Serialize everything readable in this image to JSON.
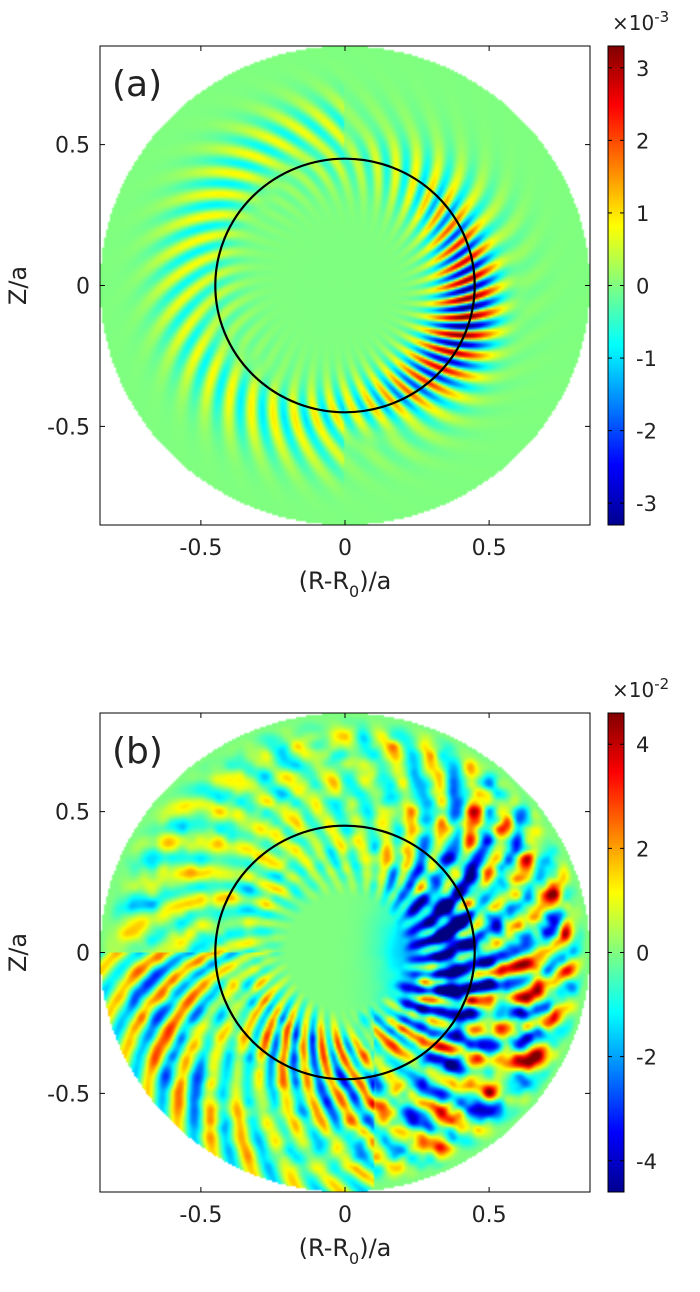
{
  "chart_data": [
    {
      "type": "heatmap",
      "panel_label": "(a)",
      "xlabel_main": "(R-R",
      "xlabel_sub": "0",
      "xlabel_tail": ")/a",
      "ylabel": "Z/a",
      "xlim": [
        -0.85,
        0.85
      ],
      "ylim": [
        -0.85,
        0.85
      ],
      "x_ticks": [
        -0.5,
        0,
        0.5
      ],
      "x_tick_labels": [
        "-0.5",
        "0",
        "0.5"
      ],
      "y_ticks": [
        0.5,
        0,
        -0.5
      ],
      "y_tick_labels": [
        "0.5",
        "0",
        "-0.5"
      ],
      "domain_radius": 0.85,
      "reference_circle_radius": 0.45,
      "colorbar": {
        "range": [
          -3.3,
          3.3
        ],
        "ticks": [
          3,
          2,
          1,
          0,
          -1,
          -2,
          -3
        ],
        "tick_labels": [
          "3",
          "2",
          "1",
          "0",
          "-1",
          "-2",
          "-3"
        ],
        "exponent_base": "×10",
        "exponent": "-3",
        "colormap": "jet"
      },
      "description_pattern": "ballooning",
      "colors": {
        "frame": "#000000",
        "circle": "#000000"
      }
    },
    {
      "type": "heatmap",
      "panel_label": "(b)",
      "xlabel_main": "(R-R",
      "xlabel_sub": "0",
      "xlabel_tail": ")/a",
      "ylabel": "Z/a",
      "xlim": [
        -0.85,
        0.85
      ],
      "ylim": [
        -0.85,
        0.85
      ],
      "x_ticks": [
        -0.5,
        0,
        0.5
      ],
      "x_tick_labels": [
        "-0.5",
        "0",
        "0.5"
      ],
      "y_ticks": [
        0.5,
        0,
        -0.5
      ],
      "y_tick_labels": [
        "0.5",
        "0",
        "-0.5"
      ],
      "domain_radius": 0.85,
      "reference_circle_radius": 0.45,
      "colorbar": {
        "range": [
          -4.6,
          4.6
        ],
        "ticks": [
          4,
          2,
          0,
          -2,
          -4
        ],
        "tick_labels": [
          "4",
          "2",
          "0",
          "-2",
          "-4"
        ],
        "exponent_base": "×10",
        "exponent": "-2",
        "colormap": "jet"
      },
      "description_pattern": "turbulent",
      "colors": {
        "frame": "#000000",
        "circle": "#000000"
      }
    }
  ]
}
